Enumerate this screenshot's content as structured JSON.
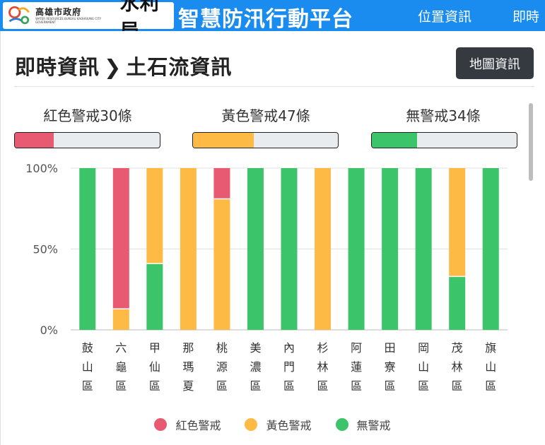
{
  "header": {
    "gov_name": "高雄市政府",
    "gov_name_en": "WATER RESOURCES BUREAU KAOHSIUNG CITY GOVERNMENT",
    "bureau": "水利局",
    "platform_title": "智慧防汛行動平台",
    "nav": [
      "位置資訊",
      "即時"
    ]
  },
  "page": {
    "breadcrumb_root": "即時資訊",
    "breadcrumb_sep": "❯",
    "breadcrumb_current": "土石流資訊",
    "map_button": "地圖資訊"
  },
  "summary": [
    {
      "label": "紅色警戒30條",
      "fraction": 0.27,
      "color": "#e85a71"
    },
    {
      "label": "黃色警戒47條",
      "fraction": 0.42,
      "color": "#fdbb45"
    },
    {
      "label": "無警戒34條",
      "fraction": 0.31,
      "color": "#3cc46b"
    }
  ],
  "legend": [
    {
      "label": "紅色警戒",
      "color": "#e85a71"
    },
    {
      "label": "黃色警戒",
      "color": "#fdbb45"
    },
    {
      "label": "無警戒",
      "color": "#3cc46b"
    }
  ],
  "chart_data": {
    "type": "bar",
    "stacked": true,
    "normalized": true,
    "categories": [
      "鼓山區",
      "六龜區",
      "甲仙區",
      "那瑪夏",
      "桃源區",
      "美濃區",
      "內門區",
      "杉林區",
      "阿蓮區",
      "田寮區",
      "岡山區",
      "茂林區",
      "旗山區"
    ],
    "series": [
      {
        "name": "紅色警戒",
        "color": "#e85a71",
        "values": [
          0,
          87,
          0,
          0,
          19,
          0,
          0,
          0,
          0,
          0,
          0,
          0,
          0
        ]
      },
      {
        "name": "黃色警戒",
        "color": "#fdbb45",
        "values": [
          0,
          13,
          59,
          100,
          81,
          0,
          0,
          100,
          0,
          0,
          0,
          67,
          0
        ]
      },
      {
        "name": "無警戒",
        "color": "#3cc46b",
        "values": [
          100,
          0,
          41,
          0,
          0,
          100,
          100,
          0,
          100,
          100,
          100,
          33,
          100
        ]
      }
    ],
    "y_ticks": [
      "0%",
      "50%",
      "100%"
    ],
    "ylim": [
      0,
      100
    ],
    "grid": true,
    "legend_position": "bottom"
  }
}
